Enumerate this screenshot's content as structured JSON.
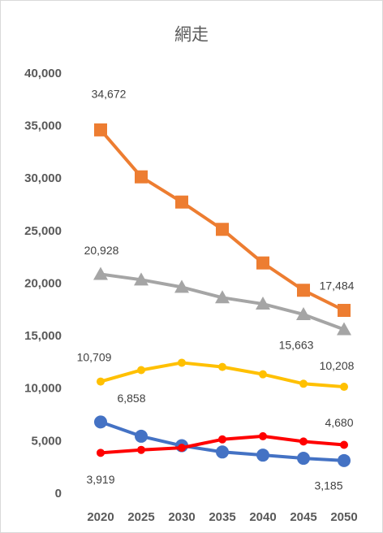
{
  "chart_data": {
    "type": "line",
    "title": "網走",
    "categories": [
      "2020",
      "2025",
      "2030",
      "2035",
      "2040",
      "2045",
      "2050"
    ],
    "ylim": [
      0,
      40000
    ],
    "yticks": [
      0,
      {
        "value": 5000,
        "label": "5,000"
      },
      {
        "value": 10000,
        "label": "10,000"
      },
      {
        "value": 15000,
        "label": "15,000"
      },
      {
        "value": 20000,
        "label": "20,000"
      },
      {
        "value": 25000,
        "label": "25,000"
      },
      {
        "value": 30000,
        "label": "30,000"
      },
      {
        "value": 35000,
        "label": "35,000"
      },
      {
        "value": 40000,
        "label": "40,000"
      }
    ],
    "grid": false,
    "series": [
      {
        "color": "#ed7d31",
        "marker": "square",
        "values": [
          34672,
          30200,
          27800,
          25200,
          22000,
          19400,
          17484
        ],
        "value_labels": [
          "34,672",
          null,
          null,
          null,
          null,
          null,
          "17,484"
        ]
      },
      {
        "color": "#a5a5a5",
        "marker": "triangle",
        "values": [
          20928,
          20400,
          19700,
          18700,
          18100,
          17100,
          15663
        ],
        "value_labels": [
          "20,928",
          null,
          null,
          null,
          null,
          null,
          "15,663"
        ]
      },
      {
        "color": "#ffc000",
        "marker": "small-circle",
        "values": [
          10709,
          11800,
          12500,
          12100,
          11400,
          10500,
          10208
        ],
        "value_labels": [
          "10,709",
          null,
          null,
          null,
          null,
          null,
          "10,208"
        ]
      },
      {
        "color": "#4472c4",
        "marker": "circle",
        "values": [
          6858,
          5500,
          4600,
          4000,
          3700,
          3400,
          3185
        ],
        "value_labels": [
          "6,858",
          null,
          null,
          null,
          null,
          null,
          "3,185"
        ]
      },
      {
        "color": "#ff0000",
        "marker": "small-circle",
        "values": [
          3919,
          4200,
          4400,
          5200,
          5500,
          5000,
          4680
        ],
        "value_labels": [
          "3,919",
          null,
          null,
          null,
          null,
          null,
          "4,680"
        ]
      }
    ]
  }
}
